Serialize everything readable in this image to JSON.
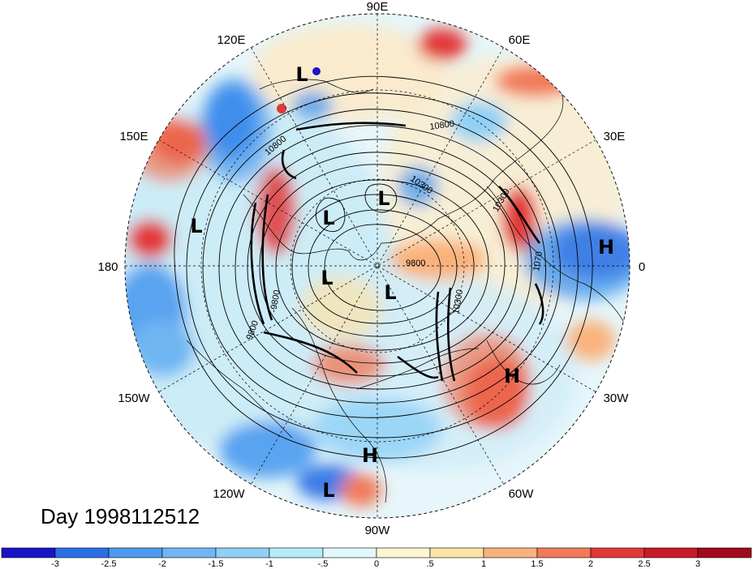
{
  "title": "Day 1998112512",
  "longitude_labels": {
    "lon_90e": "90E",
    "lon_120e": "120E",
    "lon_60e": "60E",
    "lon_150e": "150E",
    "lon_30e": "30E",
    "lon_180": "180",
    "lon_0": "0",
    "lon_150w": "150W",
    "lon_30w": "30W",
    "lon_120w": "120W",
    "lon_60w": "60W",
    "lon_90w": "90W"
  },
  "pressure_centers": [
    {
      "id": "l1",
      "label": "L"
    },
    {
      "id": "l2",
      "label": "L"
    },
    {
      "id": "l3",
      "label": "L"
    },
    {
      "id": "l4",
      "label": "L"
    },
    {
      "id": "l5",
      "label": "L"
    },
    {
      "id": "l6",
      "label": "L"
    },
    {
      "id": "l7",
      "label": "L"
    },
    {
      "id": "h1",
      "label": "H"
    },
    {
      "id": "h2",
      "label": "H"
    },
    {
      "id": "h3",
      "label": "H"
    }
  ],
  "contour_labels": {
    "c10800": "10800",
    "c10300a": "10300",
    "c9800a": "9800",
    "c9800b": "9800",
    "c10300b": "10300",
    "c10700": "1070",
    "c10300c": "10300",
    "c9800c": "-9800",
    "c10800b": "10800"
  },
  "colorbar": {
    "ticks": [
      "-3",
      "-2.5",
      "-2",
      "-1.5",
      "-1",
      "-.5",
      "0",
      ".5",
      "1",
      "1.5",
      "2",
      "2.5",
      "3"
    ],
    "colors": [
      "#1a14c8",
      "#2a6fe6",
      "#4b9bee",
      "#6fb6f2",
      "#8fd0f6",
      "#b6ecfa",
      "#e2f8fc",
      "#fdf6d2",
      "#fde3a6",
      "#f9b27c",
      "#f17a58",
      "#e23838",
      "#c91a2a",
      "#a00a1c"
    ]
  }
}
